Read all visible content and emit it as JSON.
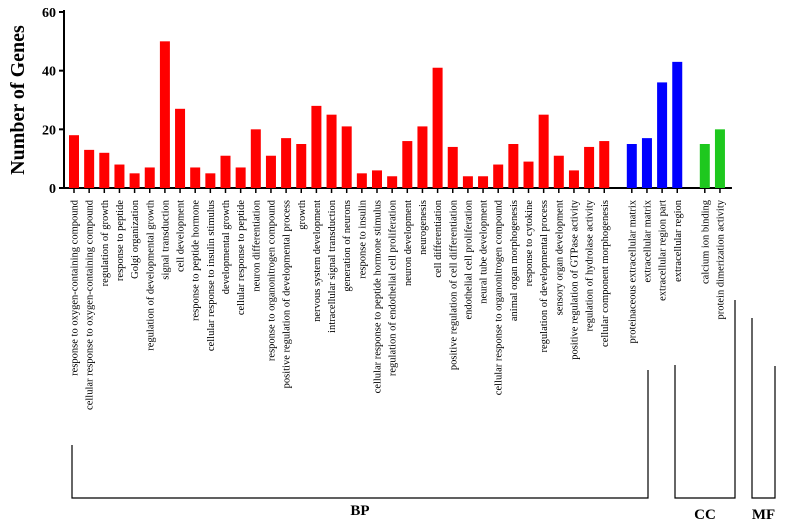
{
  "chart_data": {
    "type": "bar",
    "title": "",
    "xlabel": "",
    "ylabel": "Number of Genes",
    "ylim": [
      0,
      60
    ],
    "yticks": [
      0,
      20,
      40,
      60
    ],
    "grid": false,
    "legend": "none",
    "groups": [
      {
        "name": "BP",
        "color": "#ff0000",
        "categories": [
          "response to oxygen-containing compound",
          "cellular response to oxygen-containing compound",
          "regulation of growth",
          "response to peptide",
          "Golgi organization",
          "regulation of developmental growth",
          "signal transduction",
          "cell development",
          "response to peptide hormone",
          "cellular response to insulin stimulus",
          "developmental growth",
          "cellular response to peptide",
          "neuron differentiation",
          "response to organonitrogen compound",
          "positive regulation of developmental process",
          "growth",
          "nervous system development",
          "intracellular signal transduction",
          "generation of neurons",
          "response to insulin",
          "cellular response to peptide hormone stimulus",
          "regulation of endothelial cell proliferation",
          "neuron development",
          "neurogenesis",
          "cell differentiation",
          "positive regulation of cell differentiation",
          "endothelial cell proliferation",
          "neural tube development",
          "cellular response to organonitrogen compound",
          "animal organ morphogenesis",
          "response to cytokine",
          "regulation of developmental process",
          "sensory organ development",
          "positive regulation of GTPase activity",
          "regulation of hydrolase activity",
          "cellular component morphogenesis"
        ],
        "values": [
          18,
          13,
          12,
          8,
          5,
          7,
          50,
          27,
          7,
          5,
          11,
          7,
          20,
          11,
          17,
          15,
          28,
          25,
          21,
          5,
          6,
          4,
          16,
          21,
          41,
          14,
          4,
          4,
          8,
          15,
          9,
          25,
          11,
          6,
          14,
          16
        ]
      },
      {
        "name": "CC",
        "color": "#0000ff",
        "categories": [
          "proteinaceous extracellular matrix",
          "extracellular matrix",
          "extracellular region part",
          "extracellular region"
        ],
        "values": [
          15,
          17,
          36,
          43
        ]
      },
      {
        "name": "MF",
        "color": "#1ec81e",
        "categories": [
          "calcium ion binding",
          "protein dimerization activity"
        ],
        "values": [
          15,
          20
        ]
      }
    ]
  }
}
